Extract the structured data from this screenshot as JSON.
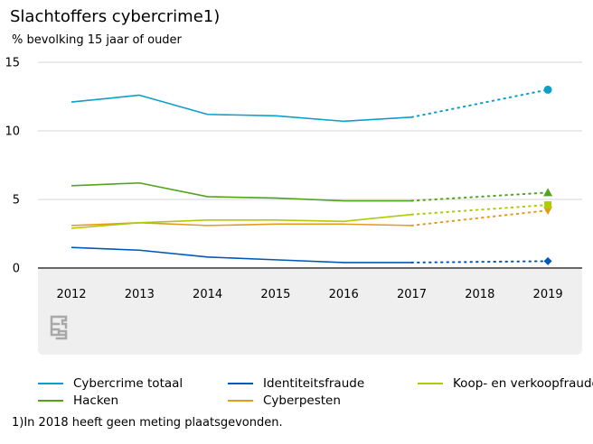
{
  "chart_data": {
    "type": "line",
    "title": "Slachtoffers cybercrime1)",
    "subtitle": "% bevolking 15 jaar of ouder",
    "xlabel": "",
    "ylabel": "",
    "x": [
      "2012",
      "2013",
      "2014",
      "2015",
      "2016",
      "2017",
      "2018",
      "2019"
    ],
    "ylim": [
      0,
      15
    ],
    "yticks": [
      "0",
      "5",
      "10",
      "15"
    ],
    "series": [
      {
        "name": "Cybercrime totaal",
        "color": "#0aa0c8",
        "marker": "circle",
        "values": [
          12.1,
          12.6,
          11.2,
          11.1,
          10.7,
          11.0,
          null,
          13.0
        ]
      },
      {
        "name": "Hacken",
        "color": "#53a31d",
        "marker": "triangle",
        "values": [
          6.0,
          6.2,
          5.2,
          5.1,
          4.9,
          4.9,
          null,
          5.5
        ]
      },
      {
        "name": "Identiteitsfraude",
        "color": "#0058b8",
        "marker": "diamond",
        "values": [
          1.5,
          1.3,
          0.8,
          0.6,
          0.4,
          0.4,
          null,
          0.5
        ]
      },
      {
        "name": "Cyberpesten",
        "color": "#e59a1c",
        "marker": "triangle-down",
        "values": [
          3.1,
          3.3,
          3.1,
          3.2,
          3.2,
          3.1,
          null,
          4.2
        ]
      },
      {
        "name": "Koop- en verkoopfraude",
        "color": "#afcb05",
        "marker": "square",
        "values": [
          2.9,
          3.3,
          3.5,
          3.5,
          3.4,
          3.9,
          null,
          4.6
        ]
      }
    ],
    "footnote": "1)In 2018 heeft geen meting plaatsgevonden."
  },
  "logo_text": "cbs"
}
